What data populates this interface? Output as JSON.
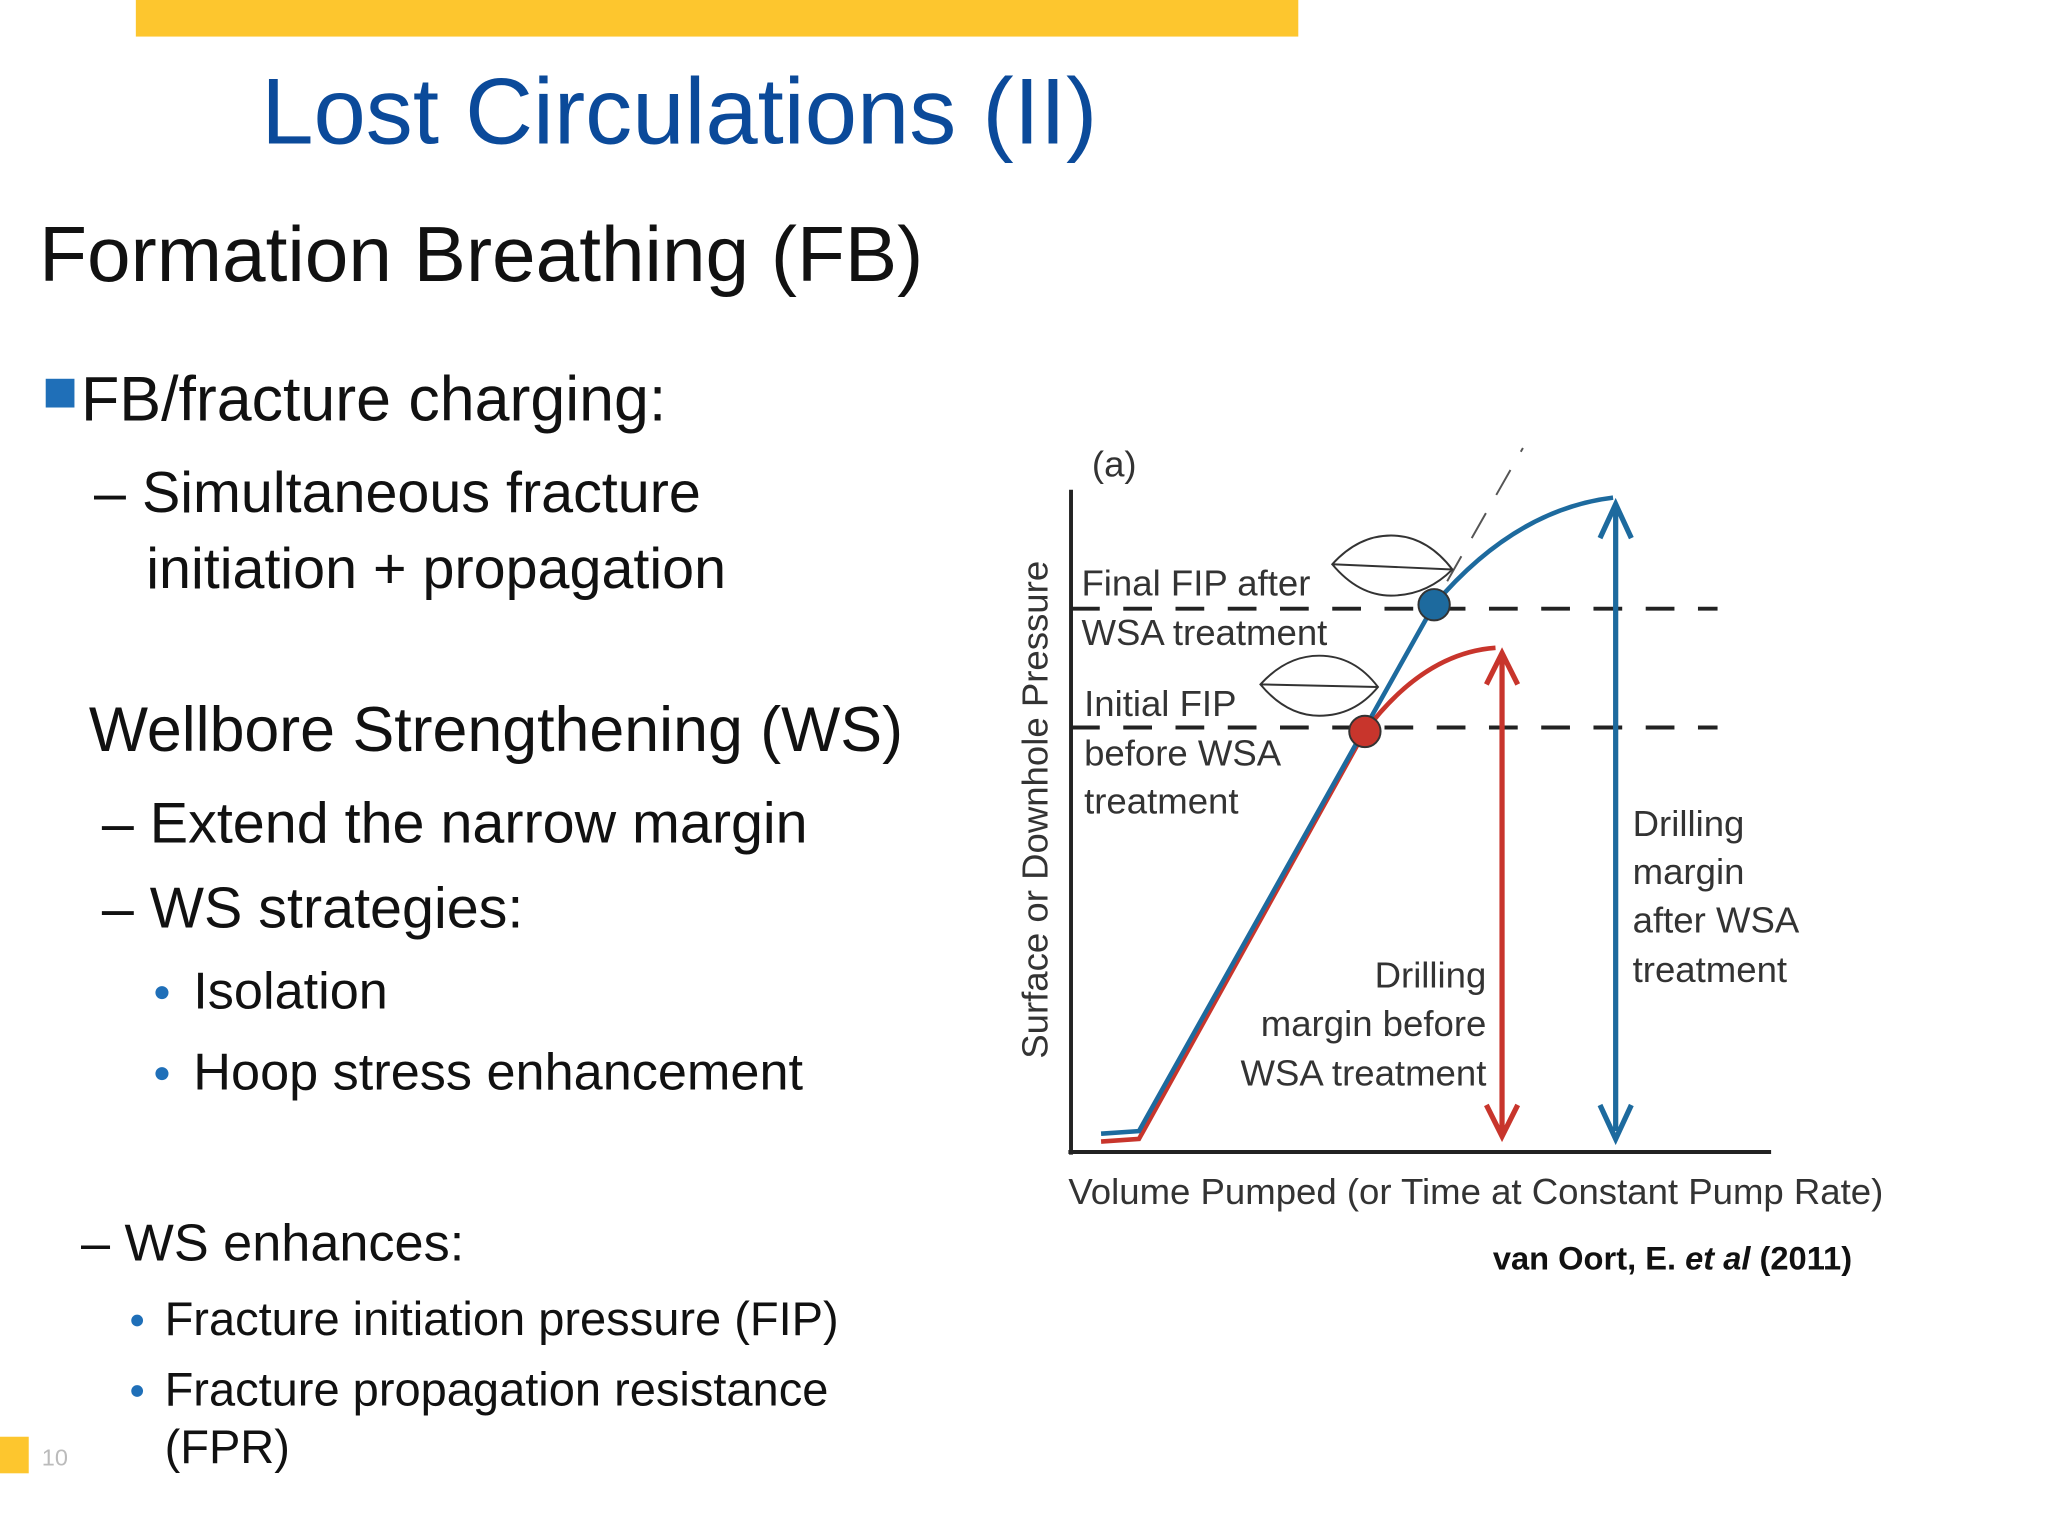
{
  "header": {
    "title": "Lost Circulations (II)"
  },
  "section": {
    "heading": "Formation Breathing (FB)",
    "bullet": "FB/fracture charging:",
    "sub": [
      "– Simultaneous fracture",
      "initiation + propagation"
    ]
  },
  "ws": {
    "heading": "Wellbore Strengthening (WS)",
    "items": [
      "– Extend the narrow margin",
      "– WS strategies:"
    ],
    "strategies": [
      "Isolation",
      "Hoop stress enhancement"
    ],
    "enhances": "– WS enhances:",
    "effects": [
      "Fracture initiation pressure (FIP)",
      "Fracture propagation resistance",
      "(FPR)"
    ]
  },
  "figure": {
    "panel": "(a)",
    "y_label": "Surface or Downhole Pressure",
    "x_label": "Volume Pumped (or Time at Constant Pump Rate)",
    "final_fip": [
      "Final FIP after",
      "WSA treatment"
    ],
    "initial_fip": [
      "Initial FIP",
      "before WSA",
      "treatment"
    ],
    "margin_before": [
      "Drilling",
      "margin before",
      "WSA treatment"
    ],
    "margin_after": [
      "Drilling",
      "margin",
      "after WSA",
      "treatment"
    ]
  },
  "citation": {
    "author": "van Oort, E. ",
    "etal": "et al",
    "year": " (2011)"
  },
  "page_number": "10"
}
